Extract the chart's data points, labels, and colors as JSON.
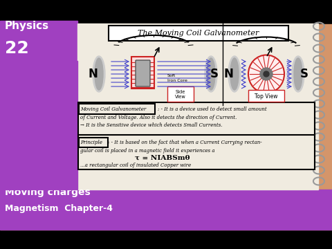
{
  "bg_color": "#000000",
  "notebook_bg": "#d4956a",
  "purple_color": "#a040c0",
  "white": "#ffffff",
  "black": "#000000",
  "red": "#cc2222",
  "blue": "#4444cc",
  "physics_text": "Physics",
  "number_text": "22",
  "title_text": "The Moving Coil Galvanometer",
  "bottom_line1": "Moving charges",
  "bottom_line2": "Magnetism  Chapter-4",
  "formula": "τ = NIABSmθ",
  "side_view_label": "Side\nView",
  "top_view_label": "Top View",
  "N_label": "N",
  "S_label": "S",
  "soft_iron": "Soft\nIron Core"
}
